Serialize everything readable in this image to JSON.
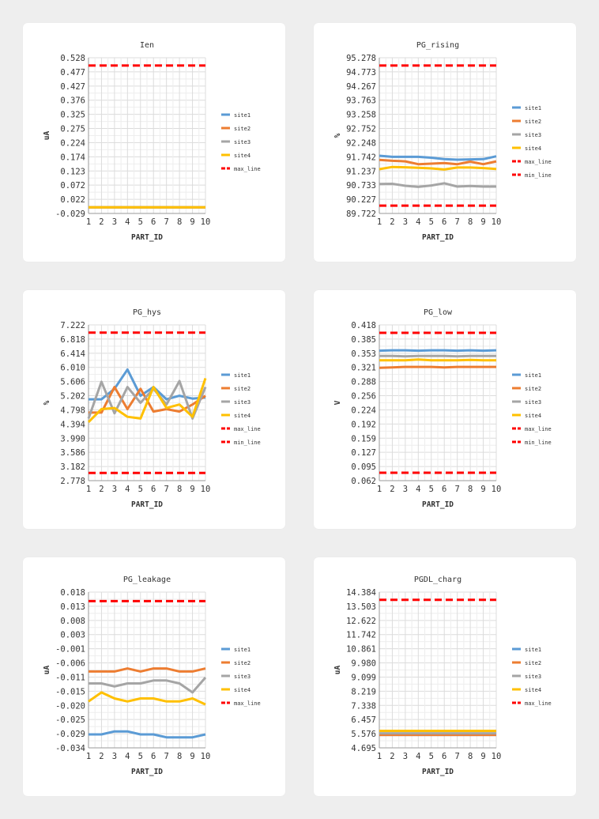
{
  "chart_data": [
    {
      "type": "line",
      "title": "Ien",
      "xlabel": "PART_ID",
      "ylabel": "uA",
      "x": [
        1,
        2,
        3,
        4,
        5,
        6,
        7,
        8,
        9,
        10
      ],
      "yticks": [
        "-0.029",
        "0.022",
        "0.072",
        "0.123",
        "0.174",
        "0.224",
        "0.275",
        "0.325",
        "0.376",
        "0.427",
        "0.477",
        "0.528"
      ],
      "ylim": [
        -0.029,
        0.528
      ],
      "grid": true,
      "legend_position": "right",
      "series": [
        {
          "name": "site1",
          "color": "#5b9bd5",
          "dash": false,
          "values": [
            -0.007,
            -0.007,
            -0.007,
            -0.007,
            -0.007,
            -0.007,
            -0.007,
            -0.007,
            -0.007,
            -0.007
          ]
        },
        {
          "name": "site2",
          "color": "#ed7d31",
          "dash": false,
          "values": [
            -0.007,
            -0.007,
            -0.007,
            -0.007,
            -0.007,
            -0.007,
            -0.007,
            -0.007,
            -0.007,
            -0.007
          ]
        },
        {
          "name": "site3",
          "color": "#a5a5a5",
          "dash": false,
          "values": [
            -0.007,
            -0.007,
            -0.007,
            -0.007,
            -0.007,
            -0.007,
            -0.007,
            -0.007,
            -0.007,
            -0.007
          ]
        },
        {
          "name": "site4",
          "color": "#ffc000",
          "dash": false,
          "values": [
            -0.007,
            -0.007,
            -0.007,
            -0.007,
            -0.007,
            -0.007,
            -0.007,
            -0.007,
            -0.007,
            -0.007
          ]
        },
        {
          "name": "max_line",
          "color": "#ff0000",
          "dash": true,
          "values": [
            0.5,
            0.5,
            0.5,
            0.5,
            0.5,
            0.5,
            0.5,
            0.5,
            0.5,
            0.5
          ]
        }
      ]
    },
    {
      "type": "line",
      "title": "PG_rising",
      "xlabel": "PART_ID",
      "ylabel": "%",
      "x": [
        1,
        2,
        3,
        4,
        5,
        6,
        7,
        8,
        9,
        10
      ],
      "yticks": [
        "89.722",
        "90.227",
        "90.733",
        "91.237",
        "91.742",
        "92.248",
        "92.752",
        "93.258",
        "93.763",
        "94.267",
        "94.773",
        "95.278"
      ],
      "ylim": [
        89.722,
        95.278
      ],
      "grid": true,
      "legend_position": "right",
      "series": [
        {
          "name": "site1",
          "color": "#5b9bd5",
          "dash": false,
          "values": [
            91.78,
            91.74,
            91.74,
            91.74,
            91.71,
            91.66,
            91.64,
            91.65,
            91.66,
            91.76
          ]
        },
        {
          "name": "site2",
          "color": "#ed7d31",
          "dash": false,
          "values": [
            91.63,
            91.6,
            91.58,
            91.48,
            91.5,
            91.52,
            91.48,
            91.57,
            91.48,
            91.58
          ]
        },
        {
          "name": "site3",
          "color": "#a5a5a5",
          "dash": false,
          "values": [
            90.77,
            90.78,
            90.71,
            90.67,
            90.72,
            90.8,
            90.68,
            90.7,
            90.68,
            90.68
          ]
        },
        {
          "name": "site4",
          "color": "#ffc000",
          "dash": false,
          "values": [
            91.3,
            91.38,
            91.37,
            91.35,
            91.33,
            91.29,
            91.36,
            91.36,
            91.34,
            91.31
          ]
        },
        {
          "name": "max_line",
          "color": "#ff0000",
          "dash": true,
          "values": [
            95.0,
            95.0,
            95.0,
            95.0,
            95.0,
            95.0,
            95.0,
            95.0,
            95.0,
            95.0
          ]
        },
        {
          "name": "min_line",
          "color": "#ff0000",
          "dash": true,
          "values": [
            90.0,
            90.0,
            90.0,
            90.0,
            90.0,
            90.0,
            90.0,
            90.0,
            90.0,
            90.0
          ]
        }
      ]
    },
    {
      "type": "line",
      "title": "PG_hys",
      "xlabel": "PART_ID",
      "ylabel": "%",
      "x": [
        1,
        2,
        3,
        4,
        5,
        6,
        7,
        8,
        9,
        10
      ],
      "yticks": [
        "2.778",
        "3.182",
        "3.586",
        "3.990",
        "4.394",
        "4.798",
        "5.202",
        "5.606",
        "6.010",
        "6.414",
        "6.818",
        "7.222"
      ],
      "ylim": [
        2.778,
        7.222
      ],
      "grid": true,
      "legend_position": "right",
      "series": [
        {
          "name": "site1",
          "color": "#5b9bd5",
          "dash": false,
          "values": [
            5.1,
            5.1,
            5.4,
            5.95,
            5.2,
            5.45,
            5.1,
            5.2,
            5.12,
            5.15
          ]
        },
        {
          "name": "site2",
          "color": "#ed7d31",
          "dash": false,
          "values": [
            4.72,
            4.72,
            5.45,
            4.82,
            5.4,
            4.75,
            4.82,
            4.75,
            4.95,
            5.2
          ]
        },
        {
          "name": "site3",
          "color": "#a5a5a5",
          "dash": false,
          "values": [
            4.55,
            5.6,
            4.7,
            5.45,
            5.0,
            5.4,
            4.95,
            5.62,
            4.55,
            5.45
          ]
        },
        {
          "name": "site4",
          "color": "#ffc000",
          "dash": false,
          "values": [
            4.45,
            4.82,
            4.85,
            4.6,
            4.55,
            5.45,
            4.85,
            4.95,
            4.6,
            5.7
          ]
        },
        {
          "name": "max_line",
          "color": "#ff0000",
          "dash": true,
          "values": [
            7.0,
            7.0,
            7.0,
            7.0,
            7.0,
            7.0,
            7.0,
            7.0,
            7.0,
            7.0
          ]
        },
        {
          "name": "min_line",
          "color": "#ff0000",
          "dash": true,
          "values": [
            3.0,
            3.0,
            3.0,
            3.0,
            3.0,
            3.0,
            3.0,
            3.0,
            3.0,
            3.0
          ]
        }
      ]
    },
    {
      "type": "line",
      "title": "PG_low",
      "xlabel": "PART_ID",
      "ylabel": "V",
      "x": [
        1,
        2,
        3,
        4,
        5,
        6,
        7,
        8,
        9,
        10
      ],
      "yticks": [
        "0.062",
        "0.095",
        "0.127",
        "0.159",
        "0.192",
        "0.224",
        "0.256",
        "0.288",
        "0.321",
        "0.353",
        "0.385",
        "0.418"
      ],
      "ylim": [
        0.062,
        0.418
      ],
      "grid": true,
      "legend_position": "right",
      "series": [
        {
          "name": "site1",
          "color": "#5b9bd5",
          "dash": false,
          "values": [
            0.359,
            0.36,
            0.36,
            0.359,
            0.36,
            0.36,
            0.359,
            0.36,
            0.359,
            0.36
          ]
        },
        {
          "name": "site2",
          "color": "#ed7d31",
          "dash": false,
          "values": [
            0.32,
            0.321,
            0.322,
            0.322,
            0.322,
            0.321,
            0.322,
            0.322,
            0.322,
            0.322
          ]
        },
        {
          "name": "site3",
          "color": "#a5a5a5",
          "dash": false,
          "values": [
            0.347,
            0.347,
            0.346,
            0.347,
            0.347,
            0.347,
            0.346,
            0.347,
            0.347,
            0.347
          ]
        },
        {
          "name": "site4",
          "color": "#ffc000",
          "dash": false,
          "values": [
            0.337,
            0.337,
            0.337,
            0.339,
            0.337,
            0.337,
            0.337,
            0.338,
            0.337,
            0.337
          ]
        },
        {
          "name": "max_line",
          "color": "#ff0000",
          "dash": true,
          "values": [
            0.4,
            0.4,
            0.4,
            0.4,
            0.4,
            0.4,
            0.4,
            0.4,
            0.4,
            0.4
          ]
        },
        {
          "name": "min_line",
          "color": "#ff0000",
          "dash": true,
          "values": [
            0.08,
            0.08,
            0.08,
            0.08,
            0.08,
            0.08,
            0.08,
            0.08,
            0.08,
            0.08
          ]
        }
      ]
    },
    {
      "type": "line",
      "title": "PG_leakage",
      "xlabel": "PART_ID",
      "ylabel": "uA",
      "x": [
        1,
        2,
        3,
        4,
        5,
        6,
        7,
        8,
        9,
        10
      ],
      "yticks": [
        "-0.034",
        "-0.029",
        "-0.025",
        "-0.020",
        "-0.015",
        "-0.011",
        "-0.006",
        "-0.001",
        "0.003",
        "0.008",
        "0.013",
        "0.018"
      ],
      "ylim": [
        -0.034,
        0.018
      ],
      "grid": true,
      "legend_position": "right",
      "series": [
        {
          "name": "site1",
          "color": "#5b9bd5",
          "dash": false,
          "values": [
            -0.0295,
            -0.0295,
            -0.0285,
            -0.0285,
            -0.0295,
            -0.0295,
            -0.0305,
            -0.0305,
            -0.0305,
            -0.0295
          ]
        },
        {
          "name": "site2",
          "color": "#ed7d31",
          "dash": false,
          "values": [
            -0.0085,
            -0.0085,
            -0.0085,
            -0.0075,
            -0.0085,
            -0.0075,
            -0.0075,
            -0.0085,
            -0.0085,
            -0.0075
          ]
        },
        {
          "name": "site3",
          "color": "#a5a5a5",
          "dash": false,
          "values": [
            -0.0125,
            -0.0125,
            -0.0135,
            -0.0125,
            -0.0125,
            -0.0115,
            -0.0115,
            -0.0125,
            -0.0155,
            -0.0105
          ]
        },
        {
          "name": "site4",
          "color": "#ffc000",
          "dash": false,
          "values": [
            -0.0185,
            -0.0155,
            -0.0175,
            -0.0185,
            -0.0175,
            -0.0175,
            -0.0185,
            -0.0185,
            -0.0175,
            -0.0195
          ]
        },
        {
          "name": "max_line",
          "color": "#ff0000",
          "dash": true,
          "values": [
            0.015,
            0.015,
            0.015,
            0.015,
            0.015,
            0.015,
            0.015,
            0.015,
            0.015,
            0.015
          ]
        }
      ]
    },
    {
      "type": "line",
      "title": "PGDL_charg",
      "xlabel": "PART_ID",
      "ylabel": "uA",
      "x": [
        1,
        2,
        3,
        4,
        5,
        6,
        7,
        8,
        9,
        10
      ],
      "yticks": [
        "4.695",
        "5.576",
        "6.457",
        "7.338",
        "8.219",
        "9.099",
        "9.980",
        "10.861",
        "11.742",
        "12.622",
        "13.503",
        "14.384"
      ],
      "ylim": [
        4.695,
        14.384
      ],
      "grid": true,
      "legend_position": "right",
      "series": [
        {
          "name": "site1",
          "color": "#5b9bd5",
          "dash": false,
          "values": [
            5.5,
            5.5,
            5.5,
            5.5,
            5.5,
            5.5,
            5.5,
            5.5,
            5.5,
            5.5
          ]
        },
        {
          "name": "site2",
          "color": "#ed7d31",
          "dash": false,
          "values": [
            5.5,
            5.5,
            5.5,
            5.5,
            5.5,
            5.5,
            5.5,
            5.5,
            5.5,
            5.5
          ]
        },
        {
          "name": "site3",
          "color": "#a5a5a5",
          "dash": false,
          "values": [
            5.6,
            5.6,
            5.6,
            5.6,
            5.6,
            5.6,
            5.6,
            5.6,
            5.6,
            5.6
          ]
        },
        {
          "name": "site4",
          "color": "#ffc000",
          "dash": false,
          "values": [
            5.75,
            5.75,
            5.75,
            5.75,
            5.75,
            5.75,
            5.75,
            5.75,
            5.75,
            5.75
          ]
        },
        {
          "name": "max_line",
          "color": "#ff0000",
          "dash": true,
          "values": [
            13.9,
            13.9,
            13.9,
            13.9,
            13.9,
            13.9,
            13.9,
            13.9,
            13.9,
            13.9
          ]
        }
      ]
    }
  ]
}
